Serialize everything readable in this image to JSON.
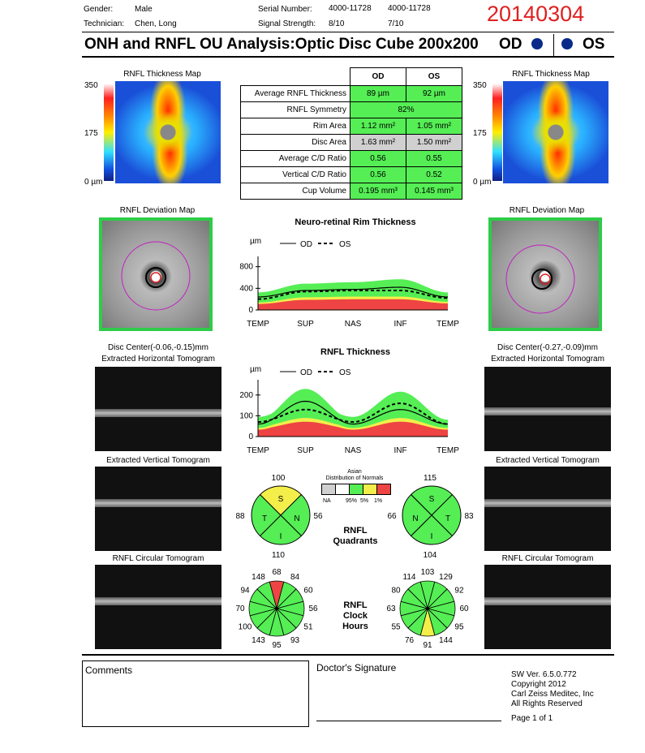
{
  "header": {
    "gender_label": "Gender:",
    "gender": "Male",
    "technician_label": "Technician:",
    "technician": "Chen, Long",
    "serial_label": "Serial Number:",
    "serial_od": "4000-11728",
    "serial_os": "4000-11728",
    "signal_label": "Signal Strength:",
    "signal_od": "8/10",
    "signal_os": "7/10",
    "date": "20140304"
  },
  "title": "ONH and RNFL OU Analysis:Optic Disc Cube 200x200",
  "eye_od": "OD",
  "eye_os": "OS",
  "maps": {
    "thickness_title": "RNFL Thickness Map",
    "scale_top": "350",
    "scale_mid": "175",
    "scale_bottom": "0 µm",
    "deviation_title": "RNFL Deviation Map",
    "disc_center_od": "Disc Center(-0.06,-0.15)mm",
    "disc_center_os": "Disc Center(-0.27,-0.09)mm",
    "horiz_tomo": "Extracted Horizontal Tomogram",
    "vert_tomo": "Extracted Vertical Tomogram",
    "circ_tomo": "RNFL Circular Tomogram"
  },
  "table": {
    "col_od": "OD",
    "col_os": "OS",
    "rows": [
      {
        "label": "Average RNFL Thickness",
        "od": "89 µm",
        "os": "92 µm"
      },
      {
        "label": "RNFL Symmetry",
        "both": "82%"
      },
      {
        "label": "Rim Area",
        "od": "1.12 mm²",
        "os": "1.05 mm²"
      },
      {
        "label": "Disc Area",
        "od": "1.63 mm²",
        "os": "1.50 mm²"
      },
      {
        "label": "Average C/D Ratio",
        "od": "0.56",
        "os": "0.55"
      },
      {
        "label": "Vertical C/D Ratio",
        "od": "0.56",
        "os": "0.52"
      },
      {
        "label": "Cup Volume",
        "od": "0.195 mm³",
        "os": "0.145 mm³"
      }
    ]
  },
  "charts": {
    "rim_title": "Neuro-retinal Rim Thickness",
    "rnfl_title": "RNFL Thickness",
    "unit": "µm",
    "legend_od": "OD",
    "legend_os": "OS",
    "x_labels": [
      "TEMP",
      "SUP",
      "NAS",
      "INF",
      "TEMP"
    ],
    "rim_ticks": [
      "800",
      "400",
      "0"
    ],
    "rnfl_ticks": [
      "200",
      "100",
      "0"
    ]
  },
  "chart_data": [
    {
      "type": "line",
      "title": "Neuro-retinal Rim Thickness",
      "ylabel": "µm",
      "ylim": [
        0,
        900
      ],
      "x": [
        "TEMP",
        "SUP",
        "NAS",
        "INF",
        "TEMP"
      ],
      "series": [
        {
          "name": "OD",
          "values": [
            240,
            360,
            380,
            420,
            240
          ]
        },
        {
          "name": "OS",
          "values": [
            200,
            340,
            360,
            360,
            220
          ]
        }
      ]
    },
    {
      "type": "line",
      "title": "RNFL Thickness",
      "ylabel": "µm",
      "ylim": [
        0,
        250
      ],
      "x": [
        "TEMP",
        "SUP",
        "NAS",
        "INF",
        "TEMP"
      ],
      "series": [
        {
          "name": "OD",
          "values": [
            60,
            170,
            60,
            130,
            60
          ]
        },
        {
          "name": "OS",
          "values": [
            70,
            130,
            70,
            160,
            60
          ]
        }
      ]
    }
  ],
  "quadrants": {
    "title_1": "RNFL",
    "title_2": "Quadrants",
    "od": {
      "s": "100",
      "t": "88",
      "n": "56",
      "i": "110",
      "s_color": "#f3ee4a"
    },
    "os": {
      "s": "115",
      "n": "66",
      "t": "83",
      "i": "104"
    },
    "letters": {
      "S": "S",
      "T": "T",
      "N": "N",
      "I": "I"
    }
  },
  "legend": {
    "title_1": "Asian",
    "title_2": "Distribution of Normals",
    "na": "NA",
    "p95": "95%",
    "p5": "5%",
    "p1": "1%"
  },
  "clock": {
    "title_1": "RNFL",
    "title_2": "Clock",
    "title_3": "Hours",
    "od": [
      "68",
      "84",
      "60",
      "56",
      "51",
      "93",
      "95",
      "143",
      "100",
      "70",
      "94",
      "148"
    ],
    "os": [
      "103",
      "129",
      "92",
      "60",
      "95",
      "144",
      "91",
      "76",
      "55",
      "63",
      "80",
      "114"
    ]
  },
  "footer": {
    "comments": "Comments",
    "signature": "Doctor's Signature",
    "sw": "SW Ver. 6.5.0.772",
    "copyright": "Copyright 2012",
    "company": "Carl Zeiss Meditec, Inc",
    "rights": "All Rights Reserved",
    "page": "Page 1 of 1"
  },
  "colors": {
    "green": "#55ee55",
    "yellow": "#f3ee4a",
    "red": "#ee4444",
    "gray": "#d0d0d0",
    "eye_dot": "#0a2a8a"
  }
}
